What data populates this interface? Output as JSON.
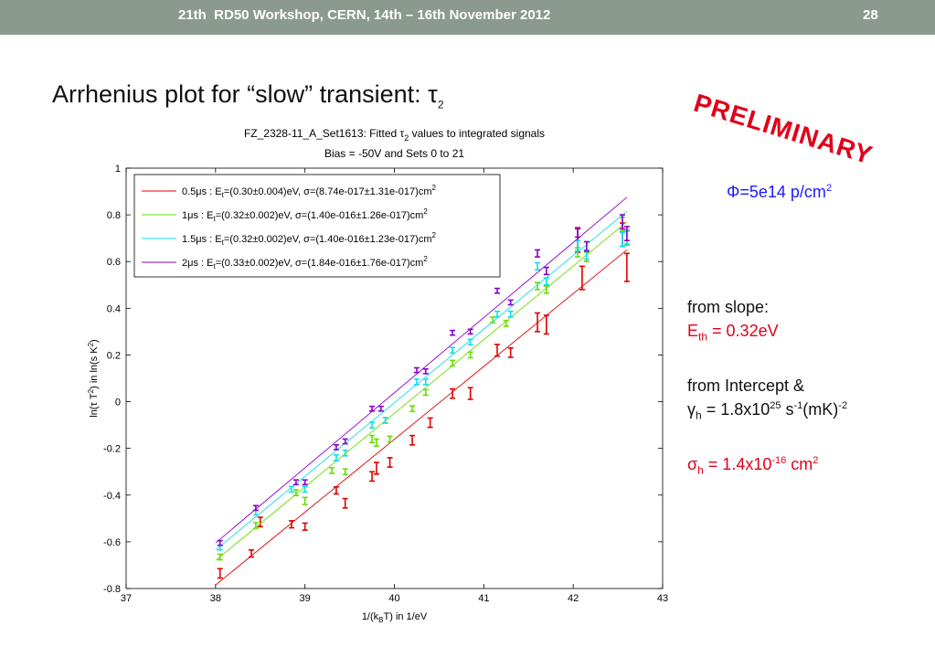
{
  "header": {
    "title": "21th  RD50 Workshop, CERN, 14th – 16th November 2012",
    "slide_number": "28"
  },
  "slide_title": "Arrhenius plot for “slow” transient: τ2",
  "stamp": "PRELIMINARY",
  "fluence": "Φ=5e14 p/cm2",
  "notes": {
    "slope_label": "from slope:",
    "eth": "Eth = 0.32eV",
    "intercept_label": "from Intercept &",
    "gamma": "γh = 1.8x1025 s-1(mK)-2",
    "sigma": "σh = 1.4x10-16 cm2"
  },
  "colors": {
    "red": "#e00000",
    "green": "#66dd00",
    "cyan": "#11ddee",
    "purple": "#8800cc",
    "header_bg": "#8a9a8e",
    "stamp": "#e0001a"
  },
  "chart_data": {
    "type": "scatter",
    "title": "FZ_2328-11_A_Set1613: Fitted τ2 values to integrated signals",
    "subtitle": "Bias = -50V and Sets 0 to 21",
    "xlabel": "1/(kBT) in 1/eV",
    "ylabel": "ln(τ T2) in ln(s K2)",
    "xlim": [
      37,
      43
    ],
    "ylim": [
      -0.8,
      1
    ],
    "xticks": [
      "37",
      "38",
      "39",
      "40",
      "41",
      "42",
      "43"
    ],
    "yticks": [
      "-0.8",
      "-0.6",
      "-0.4",
      "-0.2",
      "0",
      "0.2",
      "0.4",
      "0.6",
      "0.8",
      "1"
    ],
    "legend_position": "top-left",
    "series": [
      {
        "name": "0.5μs : Et=(0.30±0.004)eV, σ=(8.74e-017±1.31e-017)cm2",
        "color": "#e00000",
        "fit": [
          [
            38.0,
            -0.785
          ],
          [
            42.6,
            0.65
          ]
        ],
        "points": [
          [
            38.05,
            -0.735,
            0.02
          ],
          [
            38.4,
            -0.65,
            0.015
          ],
          [
            38.5,
            -0.515,
            0.02
          ],
          [
            38.85,
            -0.525,
            0.015
          ],
          [
            39.0,
            -0.535,
            0.015
          ],
          [
            39.35,
            -0.38,
            0.015
          ],
          [
            39.45,
            -0.435,
            0.02
          ],
          [
            39.75,
            -0.32,
            0.02
          ],
          [
            39.8,
            -0.285,
            0.025
          ],
          [
            39.95,
            -0.26,
            0.02
          ],
          [
            40.2,
            -0.165,
            0.02
          ],
          [
            40.4,
            -0.09,
            0.02
          ],
          [
            40.65,
            0.035,
            0.02
          ],
          [
            40.85,
            0.035,
            0.025
          ],
          [
            41.15,
            0.22,
            0.025
          ],
          [
            41.3,
            0.21,
            0.02
          ],
          [
            41.6,
            0.34,
            0.04
          ],
          [
            41.7,
            0.33,
            0.04
          ],
          [
            42.05,
            0.69,
            0.05
          ],
          [
            42.1,
            0.53,
            0.05
          ],
          [
            42.55,
            0.715,
            0.05
          ],
          [
            42.6,
            0.575,
            0.06
          ]
        ]
      },
      {
        "name": "1μs : Et=(0.32±0.002)eV, σ=(1.40e-016±1.26e-017)cm2",
        "color": "#66dd00",
        "fit": [
          [
            38.0,
            -0.68
          ],
          [
            42.6,
            0.77
          ]
        ],
        "points": [
          [
            38.05,
            -0.665,
            0.012
          ],
          [
            38.45,
            -0.53,
            0.012
          ],
          [
            38.9,
            -0.39,
            0.012
          ],
          [
            39.0,
            -0.425,
            0.015
          ],
          [
            39.3,
            -0.295,
            0.012
          ],
          [
            39.45,
            -0.3,
            0.012
          ],
          [
            39.75,
            -0.16,
            0.015
          ],
          [
            39.8,
            -0.175,
            0.015
          ],
          [
            39.95,
            -0.16,
            0.012
          ],
          [
            40.2,
            -0.03,
            0.012
          ],
          [
            40.35,
            0.04,
            0.012
          ],
          [
            40.65,
            0.165,
            0.012
          ],
          [
            40.85,
            0.2,
            0.012
          ],
          [
            41.1,
            0.35,
            0.012
          ],
          [
            41.25,
            0.335,
            0.012
          ],
          [
            41.6,
            0.495,
            0.015
          ],
          [
            41.7,
            0.48,
            0.015
          ],
          [
            42.05,
            0.64,
            0.02
          ],
          [
            42.15,
            0.62,
            0.02
          ],
          [
            42.55,
            0.76,
            0.03
          ],
          [
            42.6,
            0.7,
            0.03
          ]
        ]
      },
      {
        "name": "1.5μs : Et=(0.32±0.002)eV, σ=(1.40e-016±1.23e-017)cm2",
        "color": "#11ddee",
        "fit": [
          [
            38.0,
            -0.635
          ],
          [
            42.6,
            0.815
          ]
        ],
        "points": [
          [
            38.05,
            -0.625,
            0.01
          ],
          [
            38.45,
            -0.475,
            0.01
          ],
          [
            38.85,
            -0.375,
            0.012
          ],
          [
            39.0,
            -0.375,
            0.012
          ],
          [
            39.35,
            -0.24,
            0.012
          ],
          [
            39.45,
            -0.22,
            0.012
          ],
          [
            39.75,
            -0.1,
            0.012
          ],
          [
            39.9,
            -0.08,
            0.012
          ],
          [
            40.25,
            0.085,
            0.012
          ],
          [
            40.35,
            0.085,
            0.012
          ],
          [
            40.65,
            0.22,
            0.012
          ],
          [
            40.85,
            0.255,
            0.012
          ],
          [
            41.15,
            0.375,
            0.012
          ],
          [
            41.3,
            0.375,
            0.012
          ],
          [
            41.6,
            0.58,
            0.015
          ],
          [
            41.7,
            0.515,
            0.015
          ],
          [
            42.05,
            0.67,
            0.02
          ],
          [
            42.15,
            0.63,
            0.02
          ],
          [
            42.55,
            0.695,
            0.03
          ],
          [
            42.6,
            0.705,
            0.03
          ]
        ]
      },
      {
        "name": "2μs : Et=(0.33±0.002)eV, σ=(1.84e-016±1.76e-017)cm2",
        "color": "#8800cc",
        "fit": [
          [
            38.0,
            -0.605
          ],
          [
            42.6,
            0.875
          ]
        ],
        "points": [
          [
            38.05,
            -0.605,
            0.01
          ],
          [
            38.45,
            -0.455,
            0.01
          ],
          [
            38.9,
            -0.345,
            0.01
          ],
          [
            39.0,
            -0.345,
            0.01
          ],
          [
            39.35,
            -0.195,
            0.01
          ],
          [
            39.45,
            -0.17,
            0.01
          ],
          [
            39.75,
            -0.03,
            0.01
          ],
          [
            39.85,
            -0.03,
            0.01
          ],
          [
            40.25,
            0.135,
            0.01
          ],
          [
            40.35,
            0.13,
            0.01
          ],
          [
            40.65,
            0.295,
            0.01
          ],
          [
            40.85,
            0.3,
            0.01
          ],
          [
            41.15,
            0.475,
            0.01
          ],
          [
            41.3,
            0.425,
            0.01
          ],
          [
            41.6,
            0.635,
            0.015
          ],
          [
            41.7,
            0.56,
            0.015
          ],
          [
            42.05,
            0.725,
            0.02
          ],
          [
            42.15,
            0.665,
            0.02
          ],
          [
            42.55,
            0.77,
            0.03
          ],
          [
            42.6,
            0.72,
            0.03
          ]
        ]
      }
    ]
  }
}
